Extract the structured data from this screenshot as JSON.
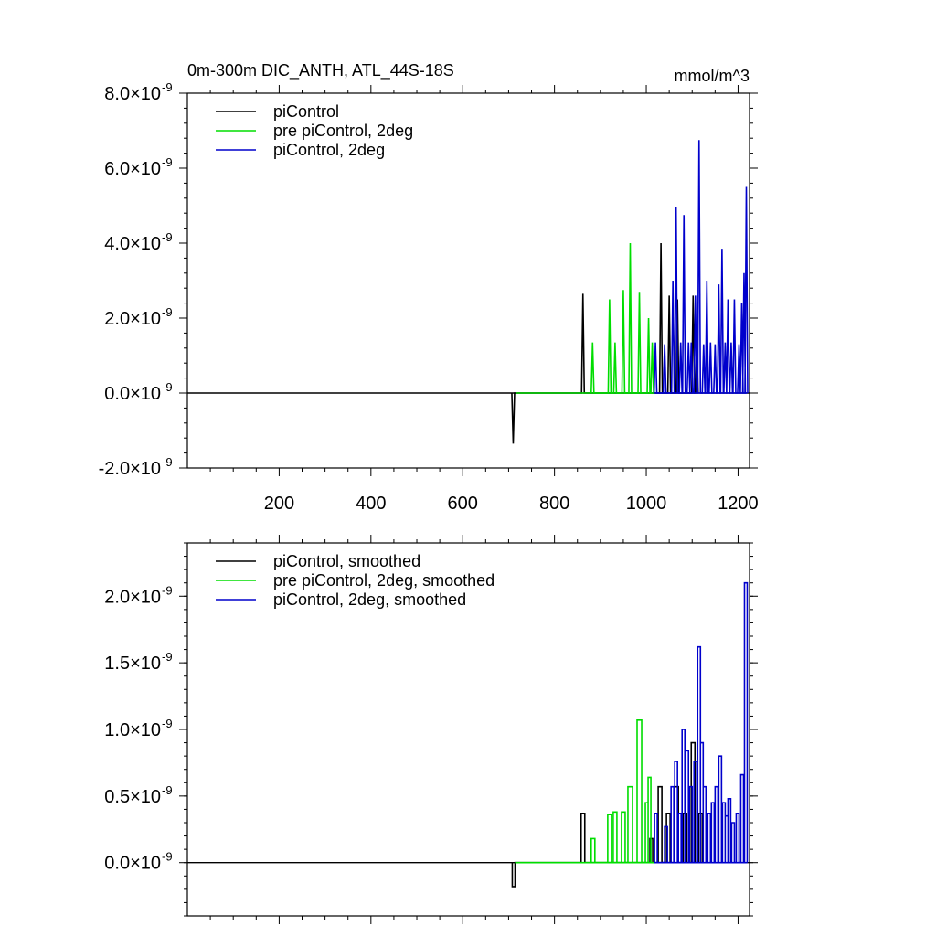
{
  "chart_data": [
    {
      "type": "line",
      "title": "0m-300m DIC_ANTH, ATL_44S-18S",
      "units": "mmol/m^3",
      "xlabel": "",
      "ylabel": "",
      "xlim": [
        0,
        1225
      ],
      "ylim": [
        -2e-09,
        8e-09
      ],
      "x_ticks": [
        200,
        400,
        600,
        800,
        1000,
        1200
      ],
      "y_ticks": [
        -2e-09,
        0.0,
        2e-09,
        4e-09,
        6e-09,
        8e-09
      ],
      "y_tick_labels": [
        {
          "mantissa": "-2.0",
          "times": "×10",
          "exp": "-9"
        },
        {
          "mantissa": "0.0",
          "times": "×10",
          "exp": "-9"
        },
        {
          "mantissa": "2.0",
          "times": "×10",
          "exp": "-9"
        },
        {
          "mantissa": "4.0",
          "times": "×10",
          "exp": "-9"
        },
        {
          "mantissa": "6.0",
          "times": "×10",
          "exp": "-9"
        },
        {
          "mantissa": "8.0",
          "times": "×10",
          "exp": "-9"
        }
      ],
      "legend_position": "top-left",
      "series": [
        {
          "name": "piControl",
          "color": "#000000",
          "spikes": [
            [
              710,
              -1.35e-09
            ],
            [
              862,
              2.65e-09
            ],
            [
              1032,
              4e-09
            ],
            [
              1050,
              2.6e-09
            ],
            [
              1068,
              2.5e-09
            ],
            [
              1102,
              2.6e-09
            ],
            [
              1110,
              1.35e-09
            ]
          ]
        },
        {
          "name": "pre piControl, 2deg",
          "color": "#00dd00",
          "spikes": [
            [
              883,
              1.35e-09
            ],
            [
              920,
              2.5e-09
            ],
            [
              932,
              1.35e-09
            ],
            [
              950,
              2.75e-09
            ],
            [
              965,
              4e-09
            ],
            [
              985,
              2.7e-09
            ],
            [
              1005,
              2e-09
            ],
            [
              1013,
              1.35e-09
            ]
          ]
        },
        {
          "name": "piControl, 2deg",
          "color": "#0000cc",
          "spikes": [
            [
              1020,
              1.35e-09
            ],
            [
              1040,
              1.3e-09
            ],
            [
              1058,
              3e-09
            ],
            [
              1065,
              4.95e-09
            ],
            [
              1075,
              1.35e-09
            ],
            [
              1082,
              4.75e-09
            ],
            [
              1092,
              1.35e-09
            ],
            [
              1098,
              1.35e-09
            ],
            [
              1107,
              2.6e-09
            ],
            [
              1115,
              6.75e-09
            ],
            [
              1125,
              1.3e-09
            ],
            [
              1132,
              3e-09
            ],
            [
              1140,
              1.35e-09
            ],
            [
              1150,
              1.3e-09
            ],
            [
              1158,
              2.9e-09
            ],
            [
              1165,
              3.85e-09
            ],
            [
              1172,
              1.35e-09
            ],
            [
              1178,
              2.5e-09
            ],
            [
              1185,
              1.35e-09
            ],
            [
              1192,
              2.5e-09
            ],
            [
              1202,
              1.3e-09
            ],
            [
              1208,
              2.4e-09
            ],
            [
              1213,
              3.2e-09
            ],
            [
              1218,
              5.5e-09
            ]
          ]
        }
      ]
    },
    {
      "type": "line",
      "title": "",
      "xlabel": "",
      "ylabel": "",
      "xlim": [
        0,
        1225
      ],
      "ylim": [
        -4e-10,
        2.4e-09
      ],
      "x_ticks": [
        200,
        400,
        600,
        800,
        1000,
        1200
      ],
      "y_ticks": [
        0.0,
        5e-10,
        1e-09,
        1.5e-09,
        2e-09
      ],
      "y_tick_labels": [
        {
          "mantissa": "0.0",
          "times": "×10",
          "exp": "-9"
        },
        {
          "mantissa": "0.5",
          "times": "×10",
          "exp": "-9"
        },
        {
          "mantissa": "1.0",
          "times": "×10",
          "exp": "-9"
        },
        {
          "mantissa": "1.5",
          "times": "×10",
          "exp": "-9"
        },
        {
          "mantissa": "2.0",
          "times": "×10",
          "exp": "-9"
        }
      ],
      "legend_position": "top-left",
      "series": [
        {
          "name": "piControl, smoothed",
          "color": "#000000",
          "pulses": [
            [
              708,
              714,
              -1.8e-10
            ],
            [
              858,
              866,
              3.7e-10
            ],
            [
              1008,
              1014,
              1.8e-10
            ],
            [
              1026,
              1034,
              5.7e-10
            ],
            [
              1044,
              1052,
              3.7e-10
            ],
            [
              1062,
              1070,
              5.7e-10
            ],
            [
              1080,
              1088,
              3.7e-10
            ],
            [
              1098,
              1106,
              9e-10
            ],
            [
              1114,
              1122,
              3.7e-10
            ]
          ]
        },
        {
          "name": "pre piControl, 2deg, smoothed",
          "color": "#00dd00",
          "pulses": [
            [
              880,
              888,
              1.8e-10
            ],
            [
              916,
              924,
              3.6e-10
            ],
            [
              928,
              936,
              3.8e-10
            ],
            [
              946,
              954,
              3.8e-10
            ],
            [
              960,
              970,
              5.7e-10
            ],
            [
              980,
              990,
              1.07e-09
            ],
            [
              998,
              1004,
              4.5e-10
            ],
            [
              1004,
              1010,
              6.4e-10
            ]
          ]
        },
        {
          "name": "piControl, 2deg, smoothed",
          "color": "#0000cc",
          "pulses": [
            [
              1018,
              1024,
              3.7e-10
            ],
            [
              1040,
              1046,
              2.7e-10
            ],
            [
              1054,
              1060,
              5.7e-10
            ],
            [
              1062,
              1068,
              7.6e-10
            ],
            [
              1070,
              1076,
              3.7e-10
            ],
            [
              1078,
              1084,
              1e-09
            ],
            [
              1086,
              1092,
              8.4e-10
            ],
            [
              1094,
              1100,
              5.7e-10
            ],
            [
              1104,
              1110,
              7.6e-10
            ],
            [
              1112,
              1118,
              1.62e-09
            ],
            [
              1118,
              1124,
              9e-10
            ],
            [
              1124,
              1130,
              5.7e-10
            ],
            [
              1134,
              1140,
              3.7e-10
            ],
            [
              1142,
              1148,
              4.5e-10
            ],
            [
              1150,
              1156,
              5.7e-10
            ],
            [
              1158,
              1164,
              8e-10
            ],
            [
              1166,
              1172,
              4.5e-10
            ],
            [
              1172,
              1178,
              3.5e-10
            ],
            [
              1178,
              1184,
              4.8e-10
            ],
            [
              1186,
              1192,
              3e-10
            ],
            [
              1196,
              1202,
              3.7e-10
            ],
            [
              1206,
              1212,
              6.6e-10
            ],
            [
              1214,
              1220,
              2.1e-09
            ]
          ]
        }
      ]
    }
  ]
}
